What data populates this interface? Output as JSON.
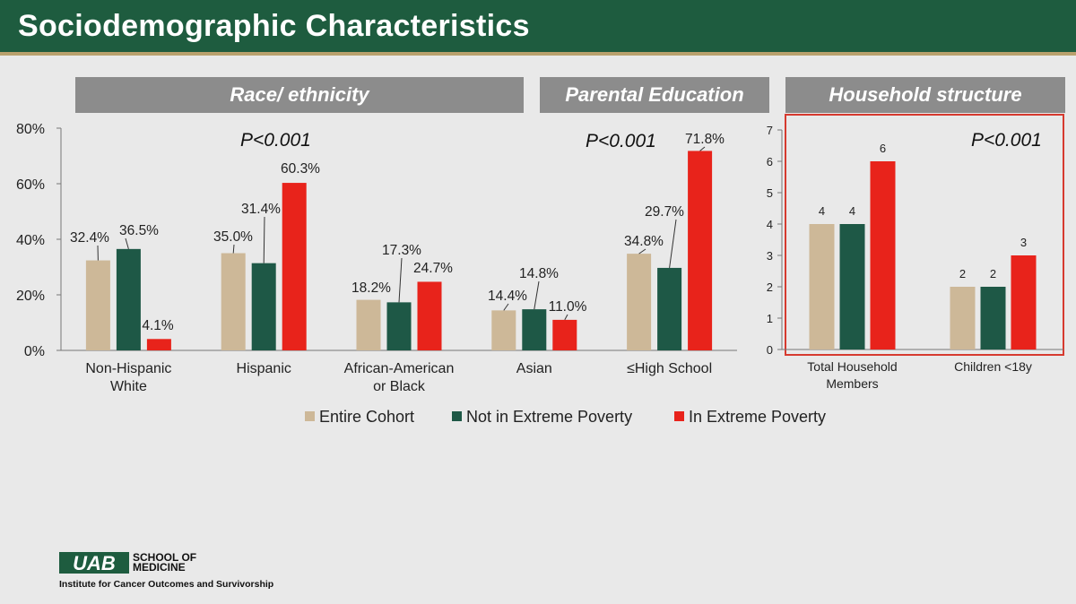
{
  "slide": {
    "title": "Sociodemographic Characteristics",
    "headers": {
      "race": "Race/ ethnicity",
      "parental": "Parental Education",
      "household": "Household structure"
    },
    "logo": {
      "school_line1": "SCHOOL OF",
      "school_line2": "MEDICINE",
      "institute": "Institute for Cancer Outcomes and Survivorship"
    }
  },
  "colors": {
    "entire": "#cdb898",
    "not_extreme": "#1e5846",
    "extreme": "#e8231b",
    "highlight_box": "#d63a2f"
  },
  "chart_data": [
    {
      "type": "bar",
      "categories": [
        "Non-Hispanic White",
        "Hispanic",
        "African-American or Black",
        "Asian",
        "≤High School"
      ],
      "series": [
        {
          "name": "Entire Cohort",
          "values": [
            32.4,
            35.0,
            18.2,
            14.4,
            34.8
          ],
          "labels": [
            "32.4%",
            "35.0%",
            "18.2%",
            "14.4%",
            "34.8%"
          ]
        },
        {
          "name": "Not in Extreme Poverty",
          "values": [
            36.5,
            31.4,
            17.3,
            14.8,
            29.7
          ],
          "labels": [
            "36.5%",
            "31.4%",
            "17.3%",
            "14.8%",
            "29.7%"
          ]
        },
        {
          "name": "In Extreme Poverty",
          "values": [
            4.1,
            60.3,
            24.7,
            11.0,
            71.8
          ],
          "labels": [
            "4.1%",
            "60.3%",
            "24.7%",
            "11.0%",
            "71.8%"
          ]
        }
      ],
      "yticks": [
        "0%",
        "20%",
        "40%",
        "60%",
        "80%"
      ],
      "ylim": [
        0,
        80
      ],
      "annotations": [
        "P<0.001",
        "P<0.001"
      ],
      "legend": [
        "Entire Cohort",
        "Not in Extreme Poverty",
        "In Extreme Poverty"
      ],
      "legend_position": "bottom"
    },
    {
      "type": "bar",
      "categories": [
        "Total Household Members",
        "Children <18y"
      ],
      "series": [
        {
          "name": "Entire Cohort",
          "values": [
            4,
            2
          ]
        },
        {
          "name": "Not in Extreme Poverty",
          "values": [
            4,
            2
          ]
        },
        {
          "name": "In Extreme Poverty",
          "values": [
            6,
            3
          ]
        }
      ],
      "yticks": [
        "0",
        "1",
        "2",
        "3",
        "4",
        "5",
        "6",
        "7"
      ],
      "ylim": [
        0,
        7
      ],
      "annotations": [
        "P<0.001"
      ]
    }
  ]
}
